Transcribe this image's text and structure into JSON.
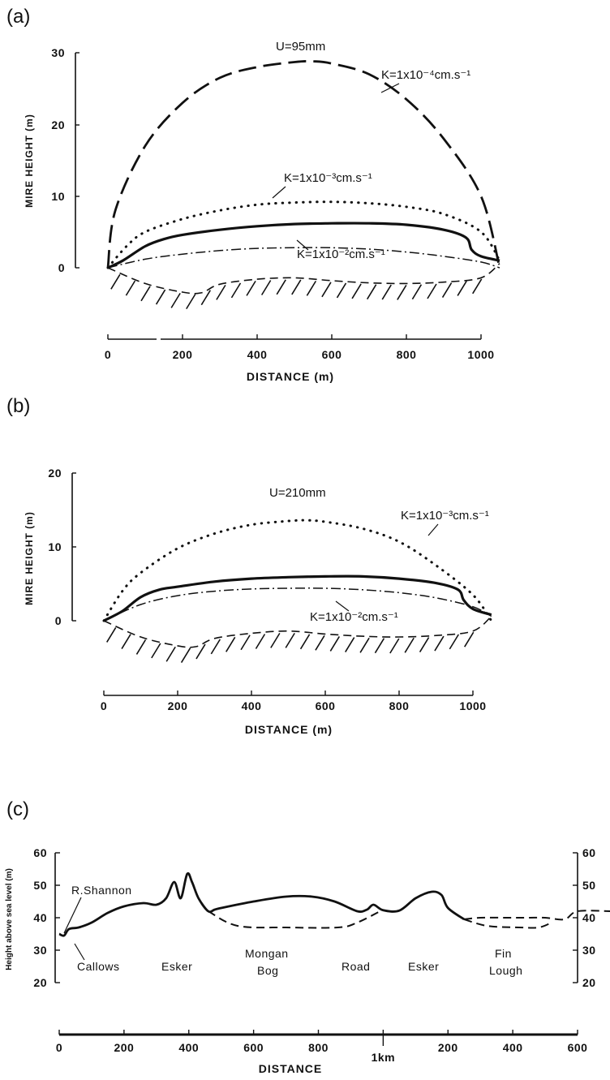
{
  "chart_data": [
    {
      "panel": "(a)",
      "type": "line",
      "xlabel": "DISTANCE (m)",
      "ylabel": "MIRE HEIGHT (m)",
      "xlim": [
        0,
        1050
      ],
      "ylim": [
        0,
        30
      ],
      "x_ticks": [
        "0",
        "200",
        "400",
        "600",
        "800",
        "1000"
      ],
      "y_ticks": [
        "0",
        "10",
        "20",
        "30"
      ],
      "annotations": [
        "U=95mm"
      ],
      "series": [
        {
          "name": "K=1x10⁻⁴cm.s⁻¹",
          "style": "dashed",
          "x": [
            0,
            20,
            100,
            200,
            300,
            400,
            500,
            550,
            600,
            700,
            800,
            900,
            1000,
            1050
          ],
          "y": [
            0,
            8,
            17,
            23,
            26.5,
            28,
            28.7,
            28.8,
            28.5,
            27,
            23.5,
            18,
            10,
            0
          ]
        },
        {
          "name": "K=1x10⁻³cm.s⁻¹",
          "style": "dotted",
          "x": [
            0,
            50,
            100,
            200,
            300,
            400,
            500,
            600,
            700,
            800,
            900,
            1000,
            1050
          ],
          "y": [
            0,
            3,
            5,
            6.8,
            8,
            8.8,
            9.1,
            9.2,
            9,
            8.5,
            7.5,
            5,
            1
          ]
        },
        {
          "name": "",
          "style": "solid",
          "x": [
            0,
            40,
            100,
            150,
            200,
            300,
            400,
            500,
            600,
            700,
            800,
            900,
            960,
            975,
            1000,
            1050
          ],
          "y": [
            0,
            1,
            3,
            4,
            4.6,
            5.3,
            5.8,
            6.1,
            6.2,
            6.2,
            6,
            5.3,
            4.2,
            2.5,
            1.6,
            1
          ]
        },
        {
          "name": "K=1x10⁻²cm.s⁻¹",
          "style": "dashdot",
          "x": [
            0,
            100,
            200,
            300,
            400,
            500,
            600,
            700,
            800,
            900,
            1000,
            1050
          ],
          "y": [
            0,
            1.2,
            1.9,
            2.4,
            2.7,
            2.8,
            2.8,
            2.6,
            2.2,
            1.6,
            0.8,
            0
          ]
        },
        {
          "name": "",
          "style": "dashed-hatched",
          "x": [
            0,
            100,
            200,
            250,
            300,
            400,
            500,
            600,
            700,
            800,
            900,
            1000,
            1050
          ],
          "y": [
            0,
            -2.2,
            -3.4,
            -3.5,
            -2.3,
            -1.6,
            -1.4,
            -1.8,
            -2.1,
            -2.2,
            -2,
            -1.4,
            0.6
          ]
        }
      ]
    },
    {
      "panel": "(b)",
      "type": "line",
      "xlabel": "DISTANCE (m)",
      "ylabel": "MIRE HEIGHT (m)",
      "xlim": [
        0,
        1050
      ],
      "ylim": [
        0,
        20
      ],
      "x_ticks": [
        "0",
        "200",
        "400",
        "600",
        "800",
        "1000"
      ],
      "y_ticks": [
        "0",
        "10",
        "20"
      ],
      "annotations": [
        "U=210mm"
      ],
      "series": [
        {
          "name": "K=1x10⁻³cm.s⁻¹",
          "style": "dotted",
          "x": [
            0,
            50,
            100,
            200,
            300,
            400,
            500,
            550,
            600,
            700,
            800,
            900,
            1000,
            1050
          ],
          "y": [
            0,
            4,
            6.5,
            9.8,
            11.8,
            13,
            13.5,
            13.6,
            13.4,
            12.5,
            10.7,
            7.5,
            3.5,
            0
          ]
        },
        {
          "name": "",
          "style": "solid",
          "x": [
            0,
            50,
            100,
            150,
            200,
            300,
            400,
            500,
            600,
            700,
            800,
            900,
            960,
            975,
            1000,
            1050
          ],
          "y": [
            0,
            1.3,
            3.2,
            4.2,
            4.6,
            5.3,
            5.7,
            5.9,
            6,
            6,
            5.7,
            5.1,
            4.2,
            2.8,
            1.6,
            0.8
          ]
        },
        {
          "name": "K=1x10⁻²cm.s⁻¹",
          "style": "dashdot",
          "x": [
            0,
            100,
            200,
            300,
            400,
            500,
            600,
            700,
            800,
            900,
            1000,
            1050
          ],
          "y": [
            0,
            2.2,
            3.4,
            4,
            4.3,
            4.4,
            4.4,
            4.2,
            3.8,
            3.1,
            1.9,
            0.6
          ]
        },
        {
          "name": "",
          "style": "dashed-hatched",
          "x": [
            0,
            100,
            200,
            250,
            300,
            400,
            500,
            600,
            700,
            800,
            900,
            1000,
            1050
          ],
          "y": [
            0,
            -2.2,
            -3.4,
            -3.5,
            -2.4,
            -1.7,
            -1.4,
            -1.8,
            -2.1,
            -2.2,
            -2,
            -1.4,
            0.6
          ]
        }
      ]
    },
    {
      "panel": "(c)",
      "type": "line",
      "xlabel": "DISTANCE",
      "ylabel": "Height above sea level (m)",
      "ylim": [
        20,
        60
      ],
      "y_ticks": [
        "20",
        "30",
        "40",
        "50",
        "60"
      ],
      "x_ticks": [
        "0",
        "200",
        "400",
        "600",
        "800",
        "1km",
        "200",
        "400",
        "600"
      ],
      "x_distance_m": [
        0,
        200,
        400,
        600,
        800,
        1000,
        1200,
        1400,
        1600
      ],
      "place_labels": [
        "R.Shannon",
        "Callows",
        "Esker",
        "Mongan",
        "Bog",
        "Road",
        "Esker",
        "Fin",
        "Lough"
      ],
      "series": [
        {
          "name": "",
          "style": "solid",
          "x": [
            0,
            15,
            30,
            60,
            100,
            150,
            200,
            260,
            300,
            330,
            355,
            375,
            395,
            410,
            430,
            460,
            480,
            500,
            600,
            700,
            780,
            850,
            920,
            950,
            970,
            1000,
            1050,
            1100,
            1150,
            1180,
            1200,
            1250
          ],
          "y": [
            35,
            34.5,
            36.5,
            37,
            38.5,
            41.5,
            43.5,
            44.5,
            44,
            46,
            51,
            46,
            53.5,
            51,
            46,
            42,
            42.5,
            43,
            45,
            46.5,
            46.5,
            45,
            42,
            42.5,
            44,
            42.3,
            42.2,
            46,
            48,
            47,
            43,
            39.5
          ]
        },
        {
          "name": "",
          "style": "dashed",
          "x": [
            460,
            550,
            700,
            860,
            920,
            1000
          ],
          "y": [
            42,
            37.5,
            37,
            37,
            38.5,
            42.5
          ]
        },
        {
          "name": "",
          "style": "dashed",
          "x": [
            1250,
            1300,
            1400,
            1450,
            1500,
            1560,
            1600,
            1700,
            1750
          ],
          "y": [
            39.5,
            40,
            40,
            40,
            40,
            39.5,
            42,
            42,
            41.5
          ]
        },
        {
          "name": "",
          "style": "dashed",
          "x": [
            1250,
            1320,
            1420,
            1480,
            1520
          ],
          "y": [
            39.5,
            37.5,
            37,
            37,
            38.5
          ]
        }
      ]
    }
  ]
}
